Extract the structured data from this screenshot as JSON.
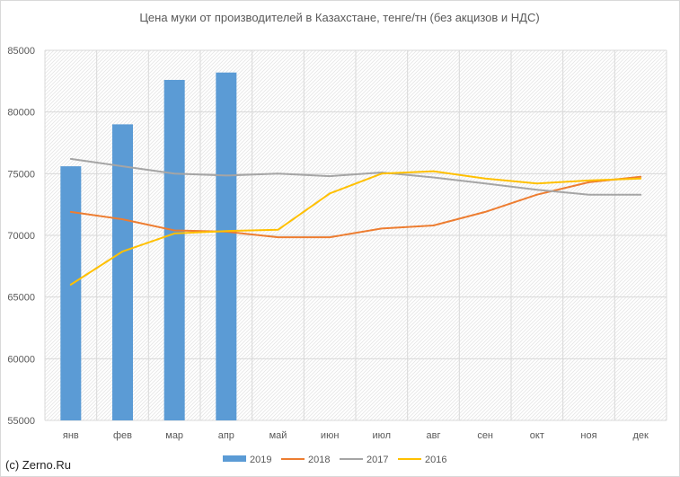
{
  "chart_data": {
    "type": "bar+line",
    "title": "Цена муки от производителей в Казахстане, тенге/тн (без акцизов и НДС)",
    "categories": [
      "янв",
      "фев",
      "мар",
      "апр",
      "май",
      "июн",
      "июл",
      "авг",
      "сен",
      "окт",
      "ноя",
      "дек"
    ],
    "ylim": [
      55000,
      85000
    ],
    "yticks": [
      55000,
      60000,
      65000,
      70000,
      75000,
      80000,
      85000
    ],
    "grid": true,
    "legend_position": "bottom",
    "series": [
      {
        "name": "2019",
        "type": "bar",
        "color": "#5B9BD5",
        "values": [
          75600,
          79000,
          82600,
          83200,
          null,
          null,
          null,
          null,
          null,
          null,
          null,
          null
        ]
      },
      {
        "name": "2018",
        "type": "line",
        "color": "#ED7D31",
        "values": [
          71900,
          71300,
          70400,
          70300,
          69850,
          69850,
          70550,
          70800,
          71900,
          73300,
          74300,
          74750
        ]
      },
      {
        "name": "2017",
        "type": "line",
        "color": "#A5A5A5",
        "values": [
          76200,
          75600,
          75000,
          74850,
          75000,
          74800,
          75100,
          74700,
          74200,
          73700,
          73300,
          73300
        ]
      },
      {
        "name": "2016",
        "type": "line",
        "color": "#FFC000",
        "values": [
          66000,
          68700,
          70150,
          70350,
          70450,
          73400,
          75000,
          75200,
          74600,
          74200,
          74450,
          74600
        ]
      }
    ]
  },
  "watermark": "(c) Zerno.Ru"
}
